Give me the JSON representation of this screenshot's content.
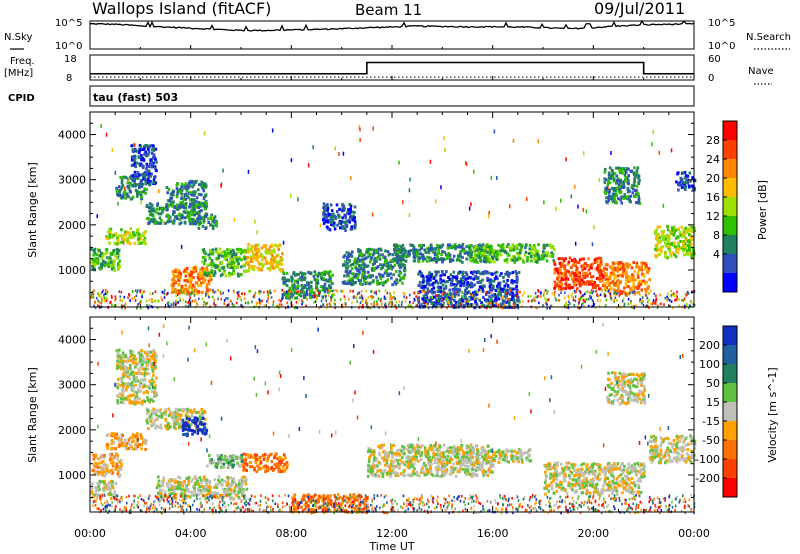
{
  "header": {
    "station": "Wallops Island (fitACF)",
    "beam": "Beam 11",
    "date": "09/Jul/2011"
  },
  "left_labels": {
    "nsky": "N.Sky",
    "freq": "Freq.",
    "freq_unit": "[MHz]",
    "cpid": "CPID"
  },
  "right_labels": {
    "nsearch": "N.Search",
    "nave": "Nave"
  },
  "cpid_text": "tau (fast) 503",
  "x_axis": {
    "title": "Time UT",
    "ticks": [
      "00:00",
      "04:00",
      "08:00",
      "12:00",
      "16:00",
      "20:00",
      "00:00"
    ]
  },
  "chart_data": [
    {
      "type": "line",
      "title": "",
      "ylabel": "N.Sky",
      "y_scale": "log",
      "yticks_left": [
        "10^5",
        "10^0"
      ],
      "yticks_right": [
        "10^5",
        "10^0"
      ],
      "ylim": [
        1,
        100000
      ],
      "x_hours": [
        0,
        1,
        2,
        3,
        4,
        5,
        6,
        7,
        8,
        9,
        10,
        11,
        12,
        13,
        14,
        15,
        16,
        17,
        18,
        19,
        20,
        21,
        22,
        23,
        24
      ],
      "noise_sky": [
        30000,
        25000,
        12000,
        8000,
        5000,
        3000,
        2000,
        2000,
        2500,
        3000,
        4000,
        6000,
        8000,
        12000,
        10000,
        9000,
        9000,
        8000,
        6000,
        4000,
        6000,
        12000,
        20000,
        25000,
        30000
      ],
      "noise_search_style": "dotted",
      "color": "#000000"
    },
    {
      "type": "line",
      "ylabel": "Freq. [MHz]",
      "yticks_left": [
        "18",
        "8"
      ],
      "yticks_right": [
        "60",
        "0"
      ],
      "ylim_freq": [
        8,
        18
      ],
      "ylim_nave": [
        0,
        60
      ],
      "segments": [
        {
          "x_start": 0,
          "x_end": 11,
          "freq": 10.5,
          "nave": 7
        },
        {
          "x_start": 11,
          "x_end": 22,
          "freq": 15.0,
          "nave": 7
        },
        {
          "x_start": 22,
          "x_end": 24,
          "freq": 10.5,
          "nave": 7
        }
      ]
    },
    {
      "type": "heatmap",
      "ylabel": "Slant Range [km]",
      "yticks": [
        "1000",
        "2000",
        "3000",
        "4000"
      ],
      "ylim": [
        180,
        4500
      ],
      "xlim": [
        0,
        24
      ],
      "colorbar": {
        "label": "Power [dB]",
        "ticks": [
          "28",
          "24",
          "20",
          "16",
          "12",
          "8",
          "4"
        ],
        "colors": [
          "#ff0000",
          "#ff4000",
          "#ff8800",
          "#ffbb00",
          "#a0e000",
          "#30c000",
          "#208060",
          "#3050c0",
          "#0000ff"
        ]
      },
      "regions": [
        {
          "t0": 0.0,
          "t1": 1.2,
          "r0": 1000,
          "r1": 1500,
          "level": 3
        },
        {
          "t0": 0.6,
          "t1": 2.2,
          "r0": 1600,
          "r1": 1950,
          "level": 4
        },
        {
          "t0": 1.0,
          "t1": 2.2,
          "r0": 2600,
          "r1": 3100,
          "level": 2
        },
        {
          "t0": 1.6,
          "t1": 2.6,
          "r0": 2900,
          "r1": 3800,
          "level": 1
        },
        {
          "t0": 2.2,
          "t1": 4.6,
          "r0": 2050,
          "r1": 2500,
          "level": 2
        },
        {
          "t0": 3.0,
          "t1": 4.6,
          "r0": 2400,
          "r1": 3000,
          "level": 2
        },
        {
          "t0": 3.2,
          "t1": 4.8,
          "r0": 500,
          "r1": 1100,
          "level": 6
        },
        {
          "t0": 4.2,
          "t1": 5.0,
          "r0": 1950,
          "r1": 2250,
          "level": 2
        },
        {
          "t0": 4.4,
          "t1": 6.2,
          "r0": 900,
          "r1": 1500,
          "level": 3
        },
        {
          "t0": 6.2,
          "t1": 7.6,
          "r0": 1000,
          "r1": 1600,
          "level": 5
        },
        {
          "t0": 7.6,
          "t1": 9.6,
          "r0": 400,
          "r1": 1000,
          "level": 2
        },
        {
          "t0": 9.2,
          "t1": 10.5,
          "r0": 1900,
          "r1": 2500,
          "level": 1
        },
        {
          "t0": 10.0,
          "t1": 12.5,
          "r0": 700,
          "r1": 1500,
          "level": 2
        },
        {
          "t0": 12.0,
          "t1": 16.0,
          "r0": 1200,
          "r1": 1600,
          "level": 2
        },
        {
          "t0": 13.0,
          "t1": 17.0,
          "r0": 200,
          "r1": 1000,
          "level": 1
        },
        {
          "t0": 15.0,
          "t1": 18.4,
          "r0": 1200,
          "r1": 1600,
          "level": 3
        },
        {
          "t0": 18.4,
          "t1": 20.4,
          "r0": 600,
          "r1": 1300,
          "level": 7
        },
        {
          "t0": 20.4,
          "t1": 22.2,
          "r0": 500,
          "r1": 1200,
          "level": 6
        },
        {
          "t0": 20.4,
          "t1": 21.8,
          "r0": 2500,
          "r1": 3300,
          "level": 2
        },
        {
          "t0": 22.4,
          "t1": 24.0,
          "r0": 1300,
          "r1": 2000,
          "level": 4
        },
        {
          "t0": 23.2,
          "t1": 24.0,
          "r0": 2800,
          "r1": 3200,
          "level": 1
        }
      ]
    },
    {
      "type": "heatmap",
      "ylabel": "Velocity [m s^-1]",
      "yticks": [
        "1000",
        "2000",
        "3000",
        "4000"
      ],
      "ylim": [
        180,
        4500
      ],
      "xlim": [
        0,
        24
      ],
      "colorbar": {
        "label": "Velocity [m s^-1]",
        "ticks": [
          "200",
          "100",
          "50",
          "15",
          "-15",
          "-50",
          "-100",
          "-200"
        ],
        "colors": [
          "#1030c0",
          "#2060a0",
          "#208060",
          "#60c040",
          "#c0c0b8",
          "#ffa000",
          "#ff7000",
          "#ff4000",
          "#ff0000"
        ]
      },
      "regions": [
        {
          "t0": 0.0,
          "t1": 1.2,
          "r0": 1000,
          "r1": 1500,
          "level": 5
        },
        {
          "t0": 0.0,
          "t1": 1.0,
          "r0": 500,
          "r1": 900,
          "level": 4
        },
        {
          "t0": 0.6,
          "t1": 2.2,
          "r0": 1600,
          "r1": 1950,
          "level": 5
        },
        {
          "t0": 1.0,
          "t1": 2.6,
          "r0": 2600,
          "r1": 3800,
          "level": 4
        },
        {
          "t0": 2.2,
          "t1": 4.6,
          "r0": 2050,
          "r1": 2500,
          "level": 4
        },
        {
          "t0": 3.6,
          "t1": 4.6,
          "r0": 1900,
          "r1": 2300,
          "level": 0
        },
        {
          "t0": 2.6,
          "t1": 6.2,
          "r0": 500,
          "r1": 1000,
          "level": 4
        },
        {
          "t0": 6.0,
          "t1": 7.8,
          "r0": 1100,
          "r1": 1500,
          "level": 6
        },
        {
          "t0": 4.6,
          "t1": 6.0,
          "r0": 1200,
          "r1": 1500,
          "level": 3
        },
        {
          "t0": 8.0,
          "t1": 11.0,
          "r0": 200,
          "r1": 600,
          "level": 6
        },
        {
          "t0": 11.0,
          "t1": 16.0,
          "r0": 1000,
          "r1": 1700,
          "level": 4
        },
        {
          "t0": 14.5,
          "t1": 17.5,
          "r0": 1300,
          "r1": 1600,
          "level": 4
        },
        {
          "t0": 18.0,
          "t1": 22.0,
          "r0": 600,
          "r1": 1300,
          "level": 4
        },
        {
          "t0": 20.5,
          "t1": 22.0,
          "r0": 2600,
          "r1": 3300,
          "level": 4
        },
        {
          "t0": 22.2,
          "t1": 24.0,
          "r0": 1300,
          "r1": 1900,
          "level": 4
        }
      ]
    }
  ]
}
